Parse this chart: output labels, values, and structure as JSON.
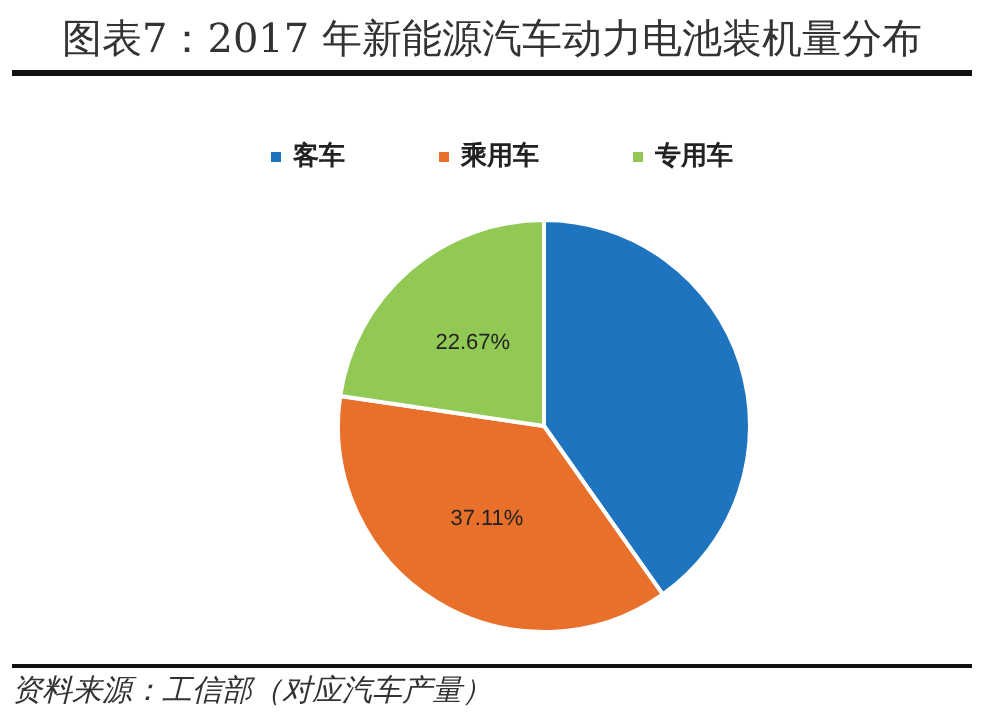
{
  "chart_data": {
    "type": "pie",
    "title": "图表7：2017 年新能源汽车动力电池装机量分布",
    "categories": [
      "客车",
      "乘用车",
      "专用车"
    ],
    "values": [
      40.22,
      37.11,
      22.67
    ],
    "colors": [
      "#1f74c0",
      "#e8702a",
      "#92c955"
    ],
    "value_labels": [
      null,
      "37.11%",
      "22.67%"
    ],
    "legend": "top",
    "annotations": [
      "资料来源：工信部（对应汽车产量）"
    ]
  }
}
